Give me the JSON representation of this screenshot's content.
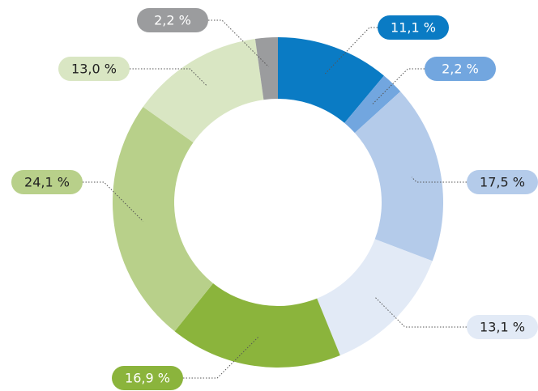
{
  "chart_data": {
    "type": "donut",
    "categories": [
      null,
      null,
      null,
      null,
      null,
      null,
      null,
      null
    ],
    "values": [
      11.1,
      2.2,
      17.5,
      13.1,
      16.9,
      24.1,
      13.0,
      2.2
    ],
    "value_labels": [
      "11,1 %",
      "2,2 %",
      "17,5 %",
      "13,1 %",
      "16,9 %",
      "24,1 %",
      "13,0 %",
      "2,2 %"
    ],
    "colors": [
      "#0a7bc4",
      "#72a6df",
      "#b4cbea",
      "#e2eaf6",
      "#8bb43c",
      "#b8d08a",
      "#d9e6c3",
      "#9b9c9e"
    ]
  }
}
